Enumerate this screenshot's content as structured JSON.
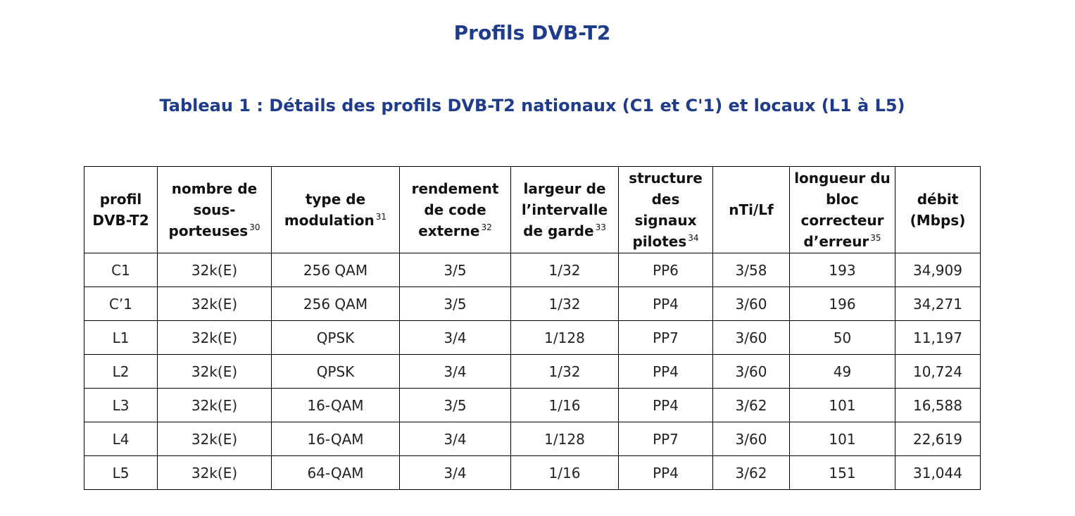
{
  "page": {
    "title": "Profils DVB-T2",
    "subtitle": "Tableau 1 : Détails des profils DVB-T2 nationaux (C1 et C'1) et locaux (L1 à L5)"
  },
  "table": {
    "headers": [
      {
        "label": "profil DVB-T2",
        "note": ""
      },
      {
        "label": "nombre de sous-porteuses",
        "note": "30"
      },
      {
        "label": "type de modulation",
        "note": "31"
      },
      {
        "label": "rendement de code externe",
        "note": "32"
      },
      {
        "label": "largeur de l’intervalle de garde",
        "note": "33"
      },
      {
        "label": "structure des signaux pilotes",
        "note": "34"
      },
      {
        "label": "nTi/Lf",
        "note": ""
      },
      {
        "label": "longueur du bloc correcteur d’erreur",
        "note": "35"
      },
      {
        "label": "débit (Mbps)",
        "note": ""
      }
    ],
    "rows": [
      [
        "C1",
        "32k(E)",
        "256 QAM",
        "3/5",
        "1/32",
        "PP6",
        "3/58",
        "193",
        "34,909"
      ],
      [
        "C’1",
        "32k(E)",
        "256 QAM",
        "3/5",
        "1/32",
        "PP4",
        "3/60",
        "196",
        "34,271"
      ],
      [
        "L1",
        "32k(E)",
        "QPSK",
        "3/4",
        "1/128",
        "PP7",
        "3/60",
        "50",
        "11,197"
      ],
      [
        "L2",
        "32k(E)",
        "QPSK",
        "3/4",
        "1/32",
        "PP4",
        "3/60",
        "49",
        "10,724"
      ],
      [
        "L3",
        "32k(E)",
        "16-QAM",
        "3/5",
        "1/16",
        "PP4",
        "3/62",
        "101",
        "16,588"
      ],
      [
        "L4",
        "32k(E)",
        "16-QAM",
        "3/4",
        "1/128",
        "PP7",
        "3/60",
        "101",
        "22,619"
      ],
      [
        "L5",
        "32k(E)",
        "64-QAM",
        "3/4",
        "1/16",
        "PP4",
        "3/62",
        "151",
        "31,044"
      ]
    ]
  }
}
